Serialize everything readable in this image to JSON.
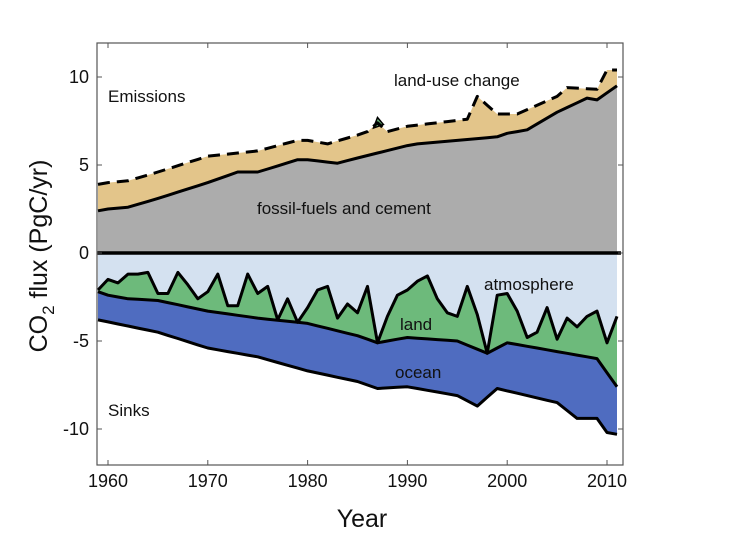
{
  "chart_data": {
    "type": "area",
    "title": "",
    "xlabel": "Year",
    "ylabel": "CO₂ flux (PgC/yr)",
    "ylabel_parts": {
      "main": "CO",
      "subscript": "2",
      "rest": " flux (PgC/yr)"
    },
    "xlim": [
      1959,
      2011.5
    ],
    "ylim": [
      -12,
      12
    ],
    "xticks": [
      1960,
      1970,
      1980,
      1990,
      2000,
      2010
    ],
    "xtick_labels": [
      "1960",
      "1970",
      "1980",
      "1990",
      "2000",
      "2010"
    ],
    "yticks": [
      -10,
      -5,
      0,
      5,
      10
    ],
    "ytick_labels": [
      "-10",
      "-5",
      "0",
      "5",
      "10"
    ],
    "grid": false,
    "annotations": {
      "emissions": "Emissions",
      "sinks": "Sinks",
      "land_use": "land-use change",
      "fossil": "fossil-fuels and cement",
      "atmosphere": "atmosphere",
      "land": "land",
      "ocean": "ocean"
    },
    "colors": {
      "fossil": "#acacac",
      "land_use": "#e3c58a",
      "atmosphere": "#d4e1f0",
      "land": "#6dba7b",
      "ocean": "#4f6cc0",
      "line": "#000000"
    },
    "anchors": {
      "x": [
        1959,
        1960,
        1962,
        1965,
        1970,
        1973,
        1975,
        1979,
        1980,
        1983,
        1985,
        1990,
        1991,
        1995,
        1999,
        2000,
        2002,
        2005,
        2008,
        2009,
        2011
      ],
      "fossil": [
        2.4,
        2.5,
        2.6,
        3.1,
        4.0,
        4.6,
        4.6,
        5.3,
        5.3,
        5.1,
        5.4,
        6.1,
        6.2,
        6.4,
        6.6,
        6.8,
        7.0,
        8.0,
        8.8,
        8.7,
        9.5
      ]
    },
    "total_emissions_anchors": {
      "x": [
        1959,
        1960,
        1962,
        1965,
        1970,
        1975,
        1979,
        1980,
        1982,
        1985,
        1986,
        1987,
        1988,
        1990,
        1996,
        1997,
        1999,
        2001,
        2005,
        2006,
        2009,
        2010,
        2011
      ],
      "values": [
        3.9,
        4.0,
        4.1,
        4.6,
        5.5,
        5.8,
        6.4,
        6.4,
        6.2,
        6.7,
        6.9,
        7.4,
        6.9,
        7.2,
        7.6,
        8.9,
        7.9,
        7.9,
        8.9,
        9.4,
        9.3,
        10.4,
        10.4
      ]
    },
    "ocean_top_anchors": {
      "x": [
        1959,
        1960,
        1962,
        1965,
        1970,
        1975,
        1980,
        1985,
        1987,
        1990,
        1995,
        1998,
        2000,
        2005,
        2009,
        2011
      ],
      "values": [
        -2.2,
        -2.4,
        -2.6,
        -2.7,
        -3.3,
        -3.7,
        -4.0,
        -4.7,
        -5.1,
        -4.8,
        -5.0,
        -5.7,
        -5.1,
        -5.6,
        -6.0,
        -7.6
      ]
    },
    "ocean_bottom_anchors": {
      "x": [
        1959,
        1965,
        1970,
        1975,
        1980,
        1985,
        1987,
        1990,
        1995,
        1997,
        1999,
        2005,
        2007,
        2009,
        2010,
        2011
      ],
      "values": [
        -3.8,
        -4.5,
        -5.4,
        -5.9,
        -6.7,
        -7.3,
        -7.7,
        -7.6,
        -8.1,
        -8.7,
        -7.7,
        -8.5,
        -9.4,
        -9.4,
        -10.2,
        -10.3
      ]
    },
    "land_top": {
      "x": [
        1959,
        1960,
        1961,
        1962,
        1963,
        1964,
        1965,
        1966,
        1967,
        1968,
        1969,
        1970,
        1971,
        1972,
        1973,
        1974,
        1975,
        1976,
        1977,
        1978,
        1979,
        1980,
        1981,
        1982,
        1983,
        1984,
        1985,
        1986,
        1987,
        1988,
        1989,
        1990,
        1991,
        1992,
        1993,
        1994,
        1995,
        1996,
        1997,
        1998,
        1999,
        2000,
        2001,
        2002,
        2003,
        2004,
        2005,
        2006,
        2007,
        2008,
        2009,
        2010,
        2011
      ],
      "values": [
        -2.1,
        -1.5,
        -1.7,
        -1.2,
        -1.2,
        -1.1,
        -2.3,
        -2.3,
        -1.1,
        -1.8,
        -2.6,
        -2.2,
        -1.2,
        -3.0,
        -3.0,
        -1.2,
        -2.3,
        -1.9,
        -3.8,
        -2.6,
        -4.4,
        -3.1,
        -2.1,
        -1.9,
        -3.7,
        -2.9,
        -3.4,
        -1.9,
        -5.6,
        -3.6,
        -2.4,
        -2.1,
        -1.6,
        -1.3,
        -2.6,
        -3.4,
        -3.6,
        -1.9,
        -3.5,
        -6.1,
        -2.4,
        -2.3,
        -3.3,
        -4.8,
        -4.5,
        -3.1,
        -4.9,
        -3.7,
        -4.2,
        -3.6,
        -3.3,
        -5.1,
        -3.6
      ]
    },
    "land_use_negative_blip": {
      "x": [
        1986.6,
        1987,
        1987.6
      ],
      "values": [
        7.1,
        7.7,
        7.3
      ]
    }
  }
}
